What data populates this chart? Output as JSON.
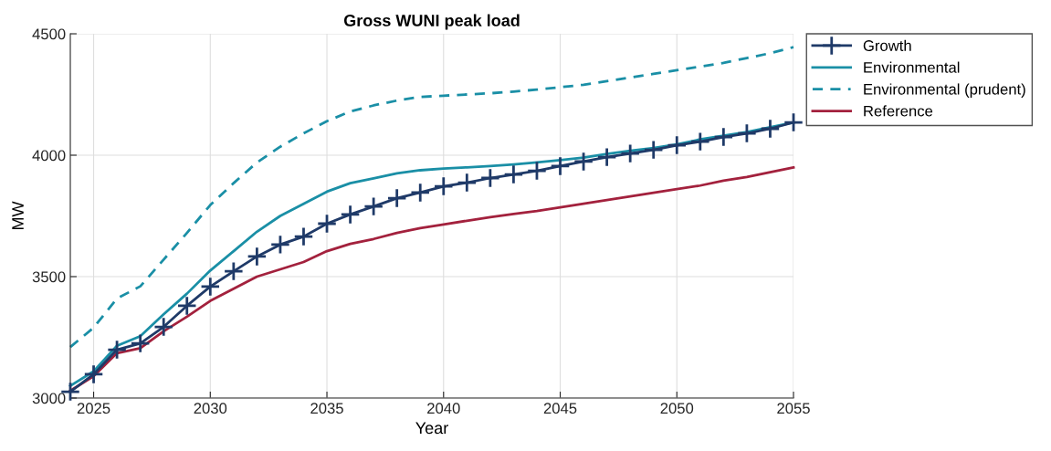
{
  "chart_data": {
    "type": "line",
    "title": "Gross WUNI peak load",
    "xlabel": "Year",
    "ylabel": "MW",
    "x": [
      2024,
      2025,
      2026,
      2027,
      2028,
      2029,
      2030,
      2031,
      2032,
      2033,
      2034,
      2035,
      2036,
      2037,
      2038,
      2039,
      2040,
      2041,
      2042,
      2043,
      2044,
      2045,
      2046,
      2047,
      2048,
      2049,
      2050,
      2051,
      2052,
      2053,
      2054,
      2055
    ],
    "series": [
      {
        "name": "Growth",
        "color": "#1f3a68",
        "marker": "cross",
        "line_style": "solid",
        "values": [
          3026,
          3098,
          3199,
          3225,
          3293,
          3380,
          3459,
          3522,
          3583,
          3632,
          3665,
          3718,
          3756,
          3789,
          3823,
          3846,
          3872,
          3887,
          3906,
          3921,
          3936,
          3955,
          3974,
          3992,
          4007,
          4022,
          4041,
          4056,
          4075,
          4090,
          4109,
          4135
        ]
      },
      {
        "name": "Environmental",
        "color": "#1a8fa6",
        "marker": "none",
        "line_style": "solid",
        "values": [
          3050,
          3110,
          3215,
          3255,
          3345,
          3430,
          3525,
          3605,
          3685,
          3750,
          3800,
          3850,
          3885,
          3905,
          3925,
          3938,
          3945,
          3950,
          3955,
          3962,
          3970,
          3980,
          3990,
          4005,
          4018,
          4030,
          4045,
          4065,
          4080,
          4095,
          4115,
          4135
        ]
      },
      {
        "name": "Environmental (prudent)",
        "color": "#1a8fa6",
        "marker": "none",
        "line_style": "dashed",
        "values": [
          3210,
          3290,
          3410,
          3460,
          3570,
          3680,
          3795,
          3885,
          3970,
          4035,
          4090,
          4140,
          4180,
          4205,
          4225,
          4240,
          4245,
          4250,
          4255,
          4262,
          4270,
          4280,
          4290,
          4305,
          4320,
          4335,
          4350,
          4365,
          4380,
          4400,
          4420,
          4445
        ]
      },
      {
        "name": "Reference",
        "color": "#a3213d",
        "marker": "none",
        "line_style": "solid",
        "values": [
          3030,
          3090,
          3185,
          3205,
          3275,
          3335,
          3400,
          3450,
          3500,
          3530,
          3560,
          3605,
          3635,
          3655,
          3680,
          3700,
          3715,
          3730,
          3745,
          3758,
          3770,
          3785,
          3800,
          3815,
          3830,
          3845,
          3860,
          3875,
          3895,
          3910,
          3930,
          3950
        ]
      }
    ],
    "xlim": [
      2024,
      2055
    ],
    "xticks": [
      2025,
      2030,
      2035,
      2040,
      2045,
      2050,
      2055
    ],
    "ylim": [
      3000,
      4500
    ],
    "yticks": [
      3000,
      3500,
      4000,
      4500
    ],
    "grid": true,
    "legend": "top right"
  }
}
